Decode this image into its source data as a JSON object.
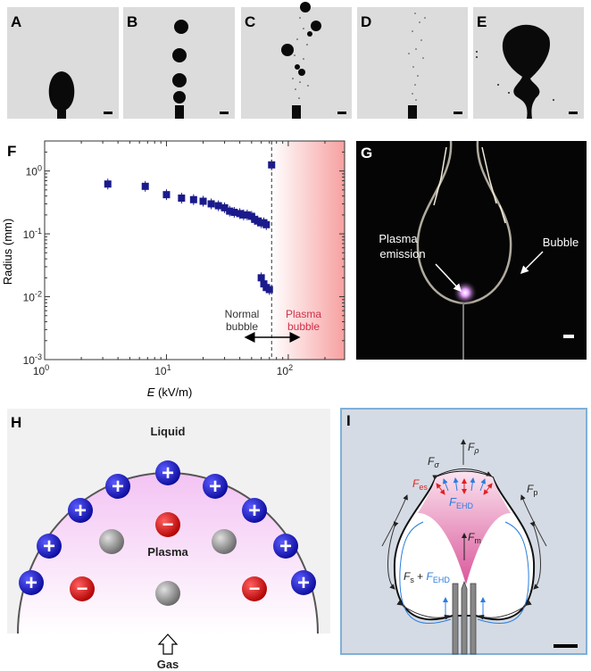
{
  "panels": {
    "a": "A",
    "b": "B",
    "c": "C",
    "d": "D",
    "e": "E",
    "f": "F",
    "g": "G",
    "h": "H",
    "i": "I"
  },
  "chart_data": {
    "type": "scatter",
    "xscale": "log",
    "yscale": "log",
    "xlim": [
      1,
      290
    ],
    "ylim": [
      0.001,
      3
    ],
    "xlabel_italic": "E",
    "xlabel_unit": " (kV/m)",
    "ylabel": "Radius (mm)",
    "xticks": [
      {
        "base": "10",
        "exp": "0",
        "value": 1
      },
      {
        "base": "10",
        "exp": "1",
        "value": 10
      },
      {
        "base": "10",
        "exp": "2",
        "value": 100
      }
    ],
    "yticks": [
      {
        "base": "10",
        "exp": "-3",
        "value": 0.001
      },
      {
        "base": "10",
        "exp": "-2",
        "value": 0.01
      },
      {
        "base": "10",
        "exp": "-1",
        "value": 0.1
      },
      {
        "base": "10",
        "exp": "0",
        "value": 1
      }
    ],
    "marker_color": "#1a1a8c",
    "threshold_x": 73,
    "plasma_region_color": "#f7a0a0",
    "points": [
      [
        3.3,
        0.62
      ],
      [
        6.7,
        0.57
      ],
      [
        10,
        0.42
      ],
      [
        13.3,
        0.37
      ],
      [
        16.7,
        0.35
      ],
      [
        20,
        0.33
      ],
      [
        23.3,
        0.3
      ],
      [
        26.7,
        0.28
      ],
      [
        30,
        0.26
      ],
      [
        33,
        0.23
      ],
      [
        36,
        0.22
      ],
      [
        40,
        0.21
      ],
      [
        43,
        0.2
      ],
      [
        46,
        0.2
      ],
      [
        50,
        0.19
      ],
      [
        53,
        0.17
      ],
      [
        56,
        0.16
      ],
      [
        60,
        0.15
      ],
      [
        63,
        0.15
      ],
      [
        66,
        0.14
      ],
      [
        60,
        0.02
      ],
      [
        63,
        0.016
      ],
      [
        66,
        0.014
      ],
      [
        70,
        0.013
      ],
      [
        73,
        1.25
      ]
    ],
    "annotations": {
      "normal_line1": "Normal",
      "normal_line2": "bubble",
      "plasma_line1": "Plasma",
      "plasma_line2": "bubble",
      "plasma_color": "#d0304a"
    }
  },
  "photo_g": {
    "label_plasma_line1": "Plasma",
    "label_plasma_line2": "emission",
    "label_bubble": "Bubble"
  },
  "diagram_h": {
    "liquid": "Liquid",
    "plasma": "Plasma",
    "gas": "Gas",
    "positive_sign": "+",
    "negative_sign": "−",
    "colors": {
      "positive": "#1010c8",
      "negative": "#d81818",
      "neutral": "#999999",
      "plasma": "#f4c8f4"
    }
  },
  "diagram_i": {
    "f_rho": "F",
    "f_rho_sub": "ρ",
    "f_sigma": "F",
    "f_sigma_sub": "σ",
    "f_es": "F",
    "f_es_sub": "es",
    "f_ehd": "F",
    "f_ehd_sub": "EHD",
    "f_p": "F",
    "f_p_sub": "p",
    "f_m": "F",
    "f_m_sub": "m",
    "f_s": "F",
    "f_s_sub": "s",
    "plus": " + ",
    "f_ehd2": "F",
    "f_ehd2_sub": "EHD",
    "colors": {
      "background": "#d5dbe4",
      "border": "#7fb0d8",
      "es": "#e02020",
      "ehd": "#2a7de0",
      "cone": "#e070a8"
    }
  }
}
